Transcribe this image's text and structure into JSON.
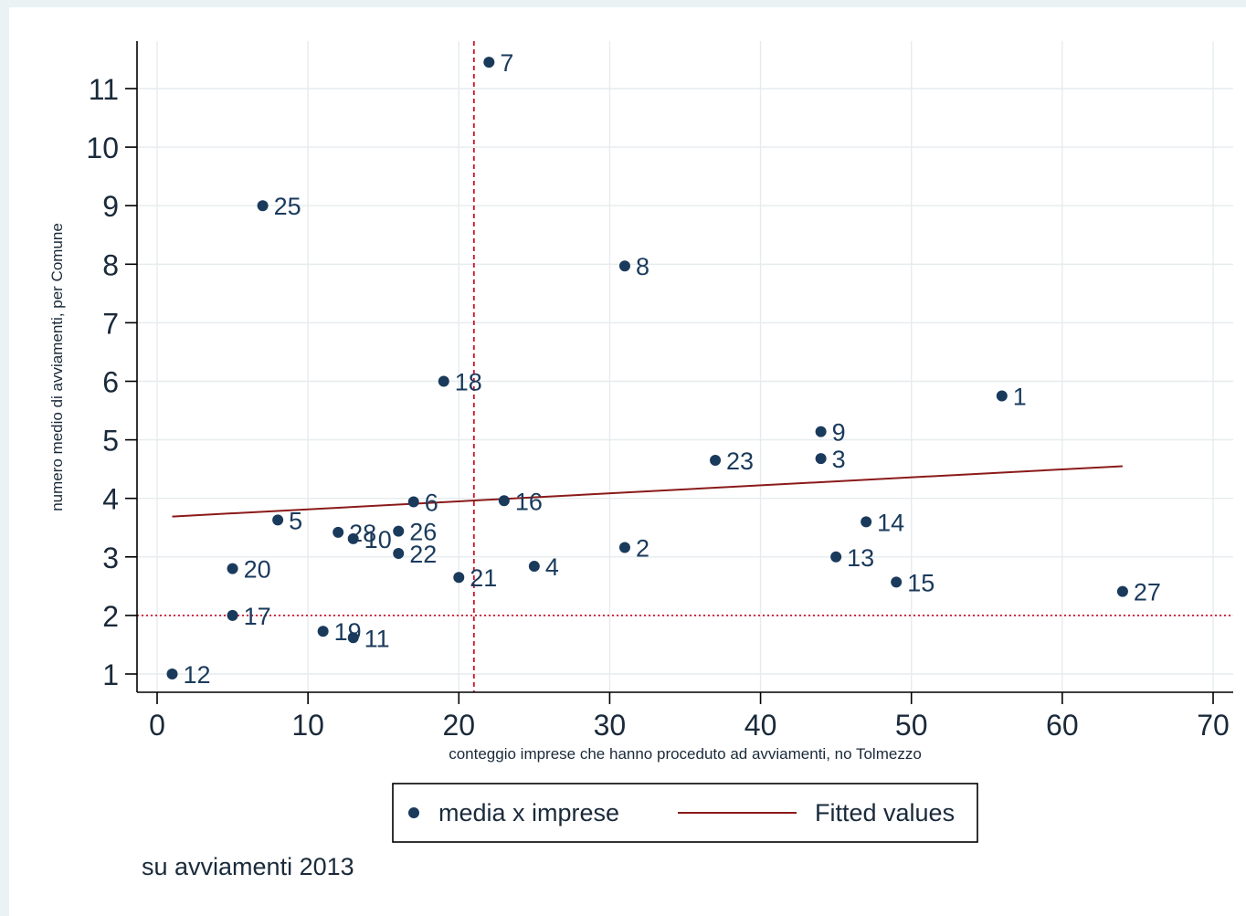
{
  "chart_data": {
    "type": "scatter",
    "title": "",
    "xlabel": "conteggio imprese che hanno proceduto ad avviamenti, no Tolmezzo",
    "ylabel": "numero medio di avviamenti, per Comune",
    "xlim": [
      0,
      70
    ],
    "ylim": [
      1,
      11
    ],
    "x_ticks": [
      0,
      10,
      20,
      30,
      40,
      50,
      60,
      70
    ],
    "y_ticks": [
      1,
      2,
      3,
      4,
      5,
      6,
      7,
      8,
      9,
      10,
      11
    ],
    "grid": true,
    "legend_position": "bottom",
    "note": "su avviamenti 2013",
    "series": [
      {
        "name": "media x imprese",
        "color": "#1a3a5c",
        "points": [
          {
            "x": 56,
            "y": 5.75,
            "label": "1"
          },
          {
            "x": 31,
            "y": 3.16,
            "label": "2"
          },
          {
            "x": 44,
            "y": 4.68,
            "label": "3"
          },
          {
            "x": 25,
            "y": 2.84,
            "label": "4"
          },
          {
            "x": 8,
            "y": 3.63,
            "label": "5"
          },
          {
            "x": 17,
            "y": 3.94,
            "label": "6"
          },
          {
            "x": 22,
            "y": 11.45,
            "label": "7"
          },
          {
            "x": 31,
            "y": 7.97,
            "label": "8"
          },
          {
            "x": 44,
            "y": 5.14,
            "label": "9"
          },
          {
            "x": 13,
            "y": 3.31,
            "label": "10"
          },
          {
            "x": 13,
            "y": 1.62,
            "label": "11"
          },
          {
            "x": 1,
            "y": 1.0,
            "label": "12"
          },
          {
            "x": 45,
            "y": 3.0,
            "label": "13"
          },
          {
            "x": 47,
            "y": 3.6,
            "label": "14"
          },
          {
            "x": 49,
            "y": 2.57,
            "label": "15"
          },
          {
            "x": 23,
            "y": 3.96,
            "label": "16"
          },
          {
            "x": 5,
            "y": 2.0,
            "label": "17"
          },
          {
            "x": 19,
            "y": 6.0,
            "label": "18"
          },
          {
            "x": 11,
            "y": 1.73,
            "label": "19"
          },
          {
            "x": 5,
            "y": 2.8,
            "label": "20"
          },
          {
            "x": 20,
            "y": 2.65,
            "label": "21"
          },
          {
            "x": 16,
            "y": 3.06,
            "label": "22"
          },
          {
            "x": 37,
            "y": 4.65,
            "label": "23"
          },
          {
            "x": 7,
            "y": 9.0,
            "label": "25"
          },
          {
            "x": 16,
            "y": 3.44,
            "label": "26"
          },
          {
            "x": 64,
            "y": 2.41,
            "label": "27"
          },
          {
            "x": 12,
            "y": 3.42,
            "label": "28"
          }
        ]
      },
      {
        "name": "Fitted values",
        "color": "#8b1a1a",
        "line": [
          {
            "x": 1,
            "y": 3.69
          },
          {
            "x": 64,
            "y": 4.55
          }
        ]
      }
    ],
    "reference_lines": {
      "vertical_x": 21,
      "horizontal_y": 2,
      "color": "#d0102a"
    }
  }
}
